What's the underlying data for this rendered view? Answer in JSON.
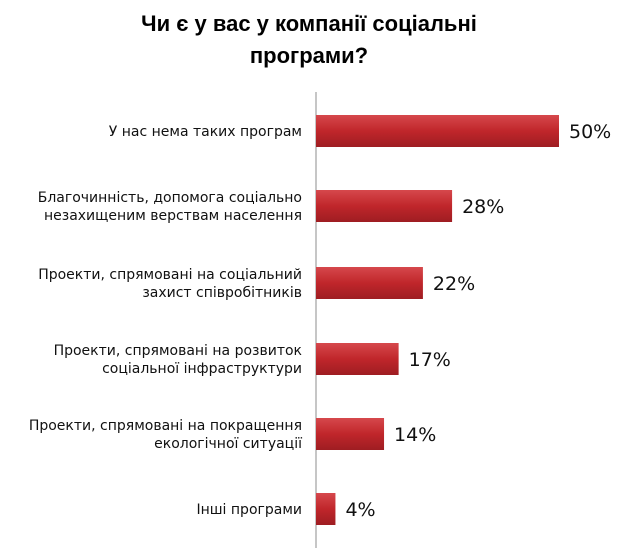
{
  "chart_data": {
    "type": "bar",
    "orientation": "horizontal",
    "title_lines": [
      "Чи є у вас у компанії соціальні",
      "програми?"
    ],
    "categories": [
      [
        "У нас нема таких програм"
      ],
      [
        "Благочинність, допомога соціально",
        "незахищеним верствам населення"
      ],
      [
        "Проекти, спрямовані на соціальний",
        "захист співробітників"
      ],
      [
        "Проекти, спрямовані на розвиток",
        "соціальної інфраструктури"
      ],
      [
        "Проекти, спрямовані на покращення",
        "екологічної ситуації"
      ],
      [
        "Інші програми"
      ]
    ],
    "values": [
      50,
      28,
      22,
      17,
      14,
      4
    ],
    "value_labels": [
      "50%",
      "28%",
      "22%",
      "17%",
      "14%",
      "4%"
    ],
    "xlim": [
      0,
      50
    ],
    "grid": false,
    "bar_color": "#c0262b"
  }
}
